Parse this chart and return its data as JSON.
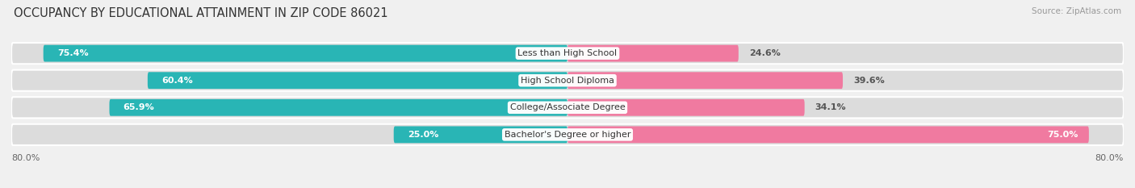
{
  "title": "OCCUPANCY BY EDUCATIONAL ATTAINMENT IN ZIP CODE 86021",
  "source": "Source: ZipAtlas.com",
  "categories": [
    "Less than High School",
    "High School Diploma",
    "College/Associate Degree",
    "Bachelor's Degree or higher"
  ],
  "owner_values": [
    75.4,
    60.4,
    65.9,
    25.0
  ],
  "renter_values": [
    24.6,
    39.6,
    34.1,
    75.0
  ],
  "owner_color": "#29b5b5",
  "renter_color": "#f07aa0",
  "total_width": 100.0,
  "x_left_label": "80.0%",
  "x_right_label": "80.0%",
  "bar_height": 0.62,
  "background_color": "#f0f0f0",
  "bar_bg_color": "#dcdcdc",
  "title_fontsize": 10.5,
  "value_fontsize": 8,
  "cat_fontsize": 8,
  "tick_fontsize": 8,
  "source_fontsize": 7.5
}
